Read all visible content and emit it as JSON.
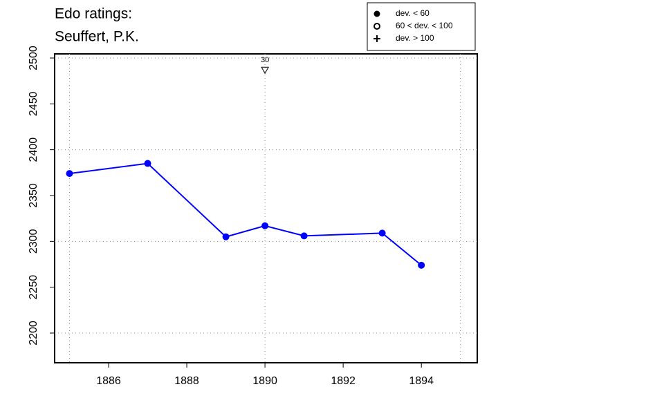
{
  "chart_data": {
    "type": "line",
    "title": "Edo ratings:",
    "subtitle": "Seuffert, P.K.",
    "x": [
      1885,
      1887,
      1889,
      1890,
      1891,
      1893,
      1894
    ],
    "series": [
      {
        "color": "#0000ff",
        "values": [
          2374,
          2385,
          2305,
          2317,
          2306,
          2309,
          2274
        ]
      }
    ],
    "xlim": [
      1884.62,
      1895.43
    ],
    "ylim": [
      2167.6,
      2504.5
    ],
    "xticks": [
      1886,
      1888,
      1890,
      1892,
      1894
    ],
    "yticks": [
      2200,
      2250,
      2300,
      2350,
      2400,
      2450,
      2500
    ],
    "xgrid": [
      1885,
      1890,
      1895
    ],
    "ygrid": [
      2200,
      2300,
      2400,
      2500
    ],
    "annotations": [
      {
        "x": 1890,
        "y": 2487,
        "label": "30"
      }
    ],
    "legend": {
      "position": "top-right",
      "items": [
        {
          "symbol": "filled-circle",
          "label": "dev. < 60"
        },
        {
          "symbol": "open-circle",
          "label": "60 < dev. < 100"
        },
        {
          "symbol": "plus",
          "label": "dev. > 100"
        }
      ]
    }
  }
}
